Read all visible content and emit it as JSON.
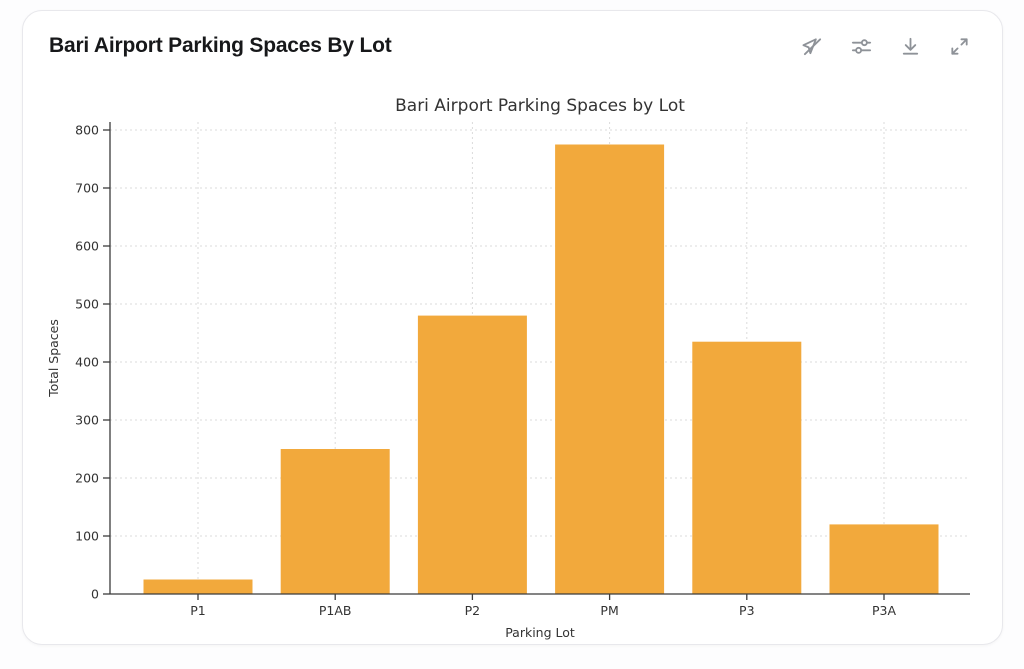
{
  "card": {
    "title": "Bari Airport Parking Spaces By Lot",
    "toolbar": [
      {
        "icon": "pointer-off-icon",
        "action": "toggle-interactivity"
      },
      {
        "icon": "sliders-icon",
        "action": "chart-settings"
      },
      {
        "icon": "download-icon",
        "action": "download-chart"
      },
      {
        "icon": "expand-icon",
        "action": "expand-chart"
      }
    ]
  },
  "chart_data": {
    "type": "bar",
    "title": "Bari Airport Parking Spaces by Lot",
    "categories": [
      "P1",
      "P1AB",
      "P2",
      "PM",
      "P3",
      "P3A"
    ],
    "values": [
      25,
      250,
      480,
      775,
      435,
      120
    ],
    "xlabel": "Parking Lot",
    "ylabel": "Total Spaces",
    "ylim": [
      0,
      800
    ],
    "yticks": [
      0,
      100,
      200,
      300,
      400,
      500,
      600,
      700,
      800
    ],
    "bar_color": "#F2A93C",
    "grid": true,
    "grid_style": "dashed",
    "legend": "none"
  },
  "colors": {
    "accent_bar": "#F2A93C",
    "grid_line": "#dbdbdb",
    "axis_line": "#3b3b3b",
    "icon_gray": "#8e9298",
    "card_border": "#e8e8ec"
  }
}
